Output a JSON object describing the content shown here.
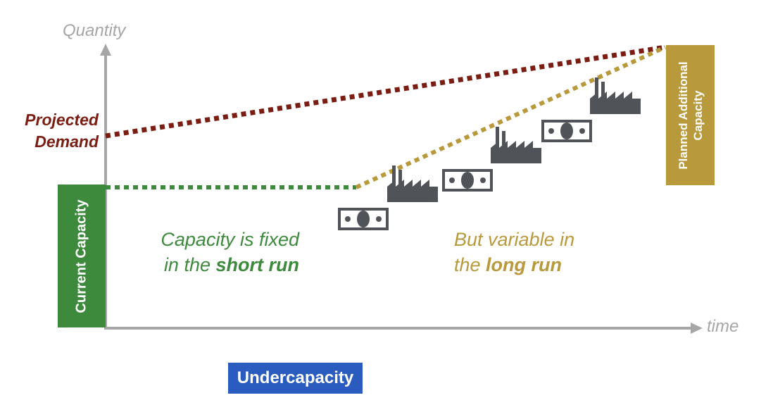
{
  "axes": {
    "y_label": "Quantity",
    "x_label": "time"
  },
  "demand_label": {
    "line1": "Projected",
    "line2": "Demand"
  },
  "current_capacity": {
    "label": "Current Capacity"
  },
  "planned_capacity": {
    "line1": "Planned Additional",
    "line2": "Capacity"
  },
  "short_run_note": {
    "line1": "Capacity is fixed",
    "line2_prefix": "in the ",
    "line2_emphasis": "short run"
  },
  "long_run_note": {
    "line1": "But variable in",
    "line2_prefix": "the ",
    "line2_emphasis": "long run"
  },
  "badge": {
    "label": "Undercapacity"
  },
  "icons": {
    "factory": "factory-icon",
    "money": "money-bill-icon"
  },
  "colors": {
    "axis": "#a6a6a6",
    "demand": "#7b1d12",
    "current_capacity": "#3d8a3d",
    "planned_capacity": "#b89a3c",
    "icon": "#505358",
    "badge": "#2a5bbf"
  }
}
